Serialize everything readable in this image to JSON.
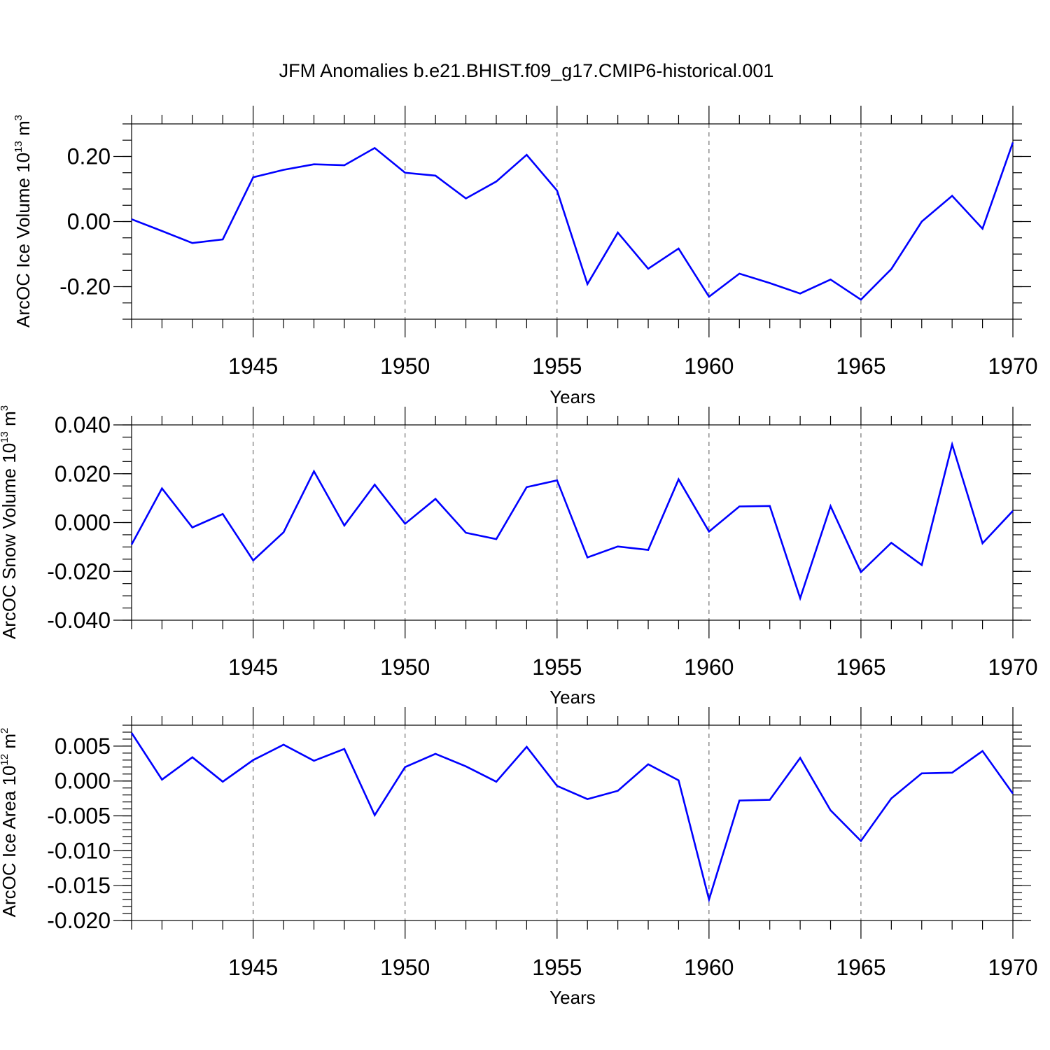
{
  "title": "JFM Anomalies b.e21.BHIST.f09_g17.CMIP6-historical.001",
  "colors": {
    "line": "#0000ff",
    "axis": "#000000",
    "grid": "#555555"
  },
  "chart_data": [
    {
      "type": "line",
      "xlabel": "Years",
      "ylabel": {
        "base": "ArcOC Ice Volume 10",
        "exp1": "13",
        "mid": " m",
        "exp2": "3"
      },
      "xlim": [
        1941,
        1970
      ],
      "ylim": [
        -0.3,
        0.3
      ],
      "xticks": [
        1945,
        1950,
        1955,
        1960,
        1965,
        1970
      ],
      "xtick_labels": [
        "1945",
        "1950",
        "1955",
        "1960",
        "1965",
        "1970"
      ],
      "yticks": [
        -0.2,
        0.0,
        0.2
      ],
      "ytick_labels": [
        "-0.20",
        "0.00",
        "0.20"
      ],
      "grid": "dashed vertical at major x ticks",
      "series": [
        {
          "x": [
            1941,
            1942,
            1943,
            1944,
            1945,
            1946,
            1947,
            1948,
            1949,
            1950,
            1951,
            1952,
            1953,
            1954,
            1955,
            1956,
            1957,
            1958,
            1959,
            1960,
            1961,
            1962,
            1963,
            1964,
            1965,
            1966,
            1967,
            1968,
            1969,
            1970
          ],
          "values": [
            0.007,
            -0.029,
            -0.066,
            -0.055,
            0.136,
            0.159,
            0.176,
            0.173,
            0.226,
            0.15,
            0.141,
            0.071,
            0.123,
            0.205,
            0.095,
            -0.192,
            -0.034,
            -0.145,
            -0.083,
            -0.231,
            -0.16,
            -0.189,
            -0.221,
            -0.178,
            -0.24,
            -0.146,
            0.0,
            0.079,
            -0.022,
            0.243
          ]
        }
      ]
    },
    {
      "type": "line",
      "xlabel": "Years",
      "ylabel": {
        "base": "ArcOC Snow Volume 10",
        "exp1": "13",
        "mid": " m",
        "exp2": "3"
      },
      "xlim": [
        1941,
        1970
      ],
      "ylim": [
        -0.04,
        0.04
      ],
      "xticks": [
        1945,
        1950,
        1955,
        1960,
        1965,
        1970
      ],
      "xtick_labels": [
        "1945",
        "1950",
        "1955",
        "1960",
        "1965",
        "1970"
      ],
      "yticks": [
        -0.04,
        -0.02,
        0.0,
        0.02,
        0.04
      ],
      "ytick_labels": [
        "-0.040",
        "-0.020",
        "0.000",
        "0.020",
        "0.040"
      ],
      "grid": "dashed vertical at major x ticks",
      "series": [
        {
          "x": [
            1941,
            1942,
            1943,
            1944,
            1945,
            1946,
            1947,
            1948,
            1949,
            1950,
            1951,
            1952,
            1953,
            1954,
            1955,
            1956,
            1957,
            1958,
            1959,
            1960,
            1961,
            1962,
            1963,
            1964,
            1965,
            1966,
            1967,
            1968,
            1969,
            1970
          ],
          "values": [
            -0.009,
            0.014,
            -0.002,
            0.0035,
            -0.0155,
            -0.004,
            0.021,
            -0.0012,
            0.0155,
            -0.0005,
            0.0097,
            -0.0042,
            -0.0068,
            0.0145,
            0.0173,
            -0.0143,
            -0.0098,
            -0.0112,
            0.0177,
            -0.0037,
            0.0066,
            0.0068,
            -0.031,
            0.0067,
            -0.0203,
            -0.0083,
            -0.0174,
            0.032,
            -0.0085,
            0.0048
          ]
        }
      ]
    },
    {
      "type": "line",
      "xlabel": "Years",
      "ylabel": {
        "base": "ArcOC Ice Area 10",
        "exp1": "12",
        "mid": " m",
        "exp2": "2"
      },
      "xlim": [
        1941,
        1970
      ],
      "ylim": [
        -0.02,
        0.008
      ],
      "xticks": [
        1945,
        1950,
        1955,
        1960,
        1965,
        1970
      ],
      "xtick_labels": [
        "1945",
        "1950",
        "1955",
        "1960",
        "1965",
        "1970"
      ],
      "yticks": [
        -0.02,
        -0.015,
        -0.01,
        -0.005,
        0.0,
        0.005
      ],
      "ytick_labels": [
        "-0.020",
        "-0.015",
        "-0.010",
        "-0.005",
        "0.000",
        "0.005"
      ],
      "grid": "dashed vertical at major x ticks",
      "series": [
        {
          "x": [
            1941,
            1942,
            1943,
            1944,
            1945,
            1946,
            1947,
            1948,
            1949,
            1950,
            1951,
            1952,
            1953,
            1954,
            1955,
            1956,
            1957,
            1958,
            1959,
            1960,
            1961,
            1962,
            1963,
            1964,
            1965,
            1966,
            1967,
            1968,
            1969,
            1970
          ],
          "values": [
            0.0069,
            0.0002,
            0.0034,
            -0.0001,
            0.003,
            0.0052,
            0.0029,
            0.0046,
            -0.0049,
            0.002,
            0.0039,
            0.0021,
            -0.0001,
            0.0049,
            -0.0007,
            -0.0026,
            -0.0014,
            0.0024,
            0.0001,
            -0.017,
            -0.0028,
            -0.0027,
            0.0033,
            -0.0042,
            -0.0086,
            -0.0025,
            0.0011,
            0.0012,
            0.0043,
            -0.0018
          ]
        }
      ]
    }
  ]
}
